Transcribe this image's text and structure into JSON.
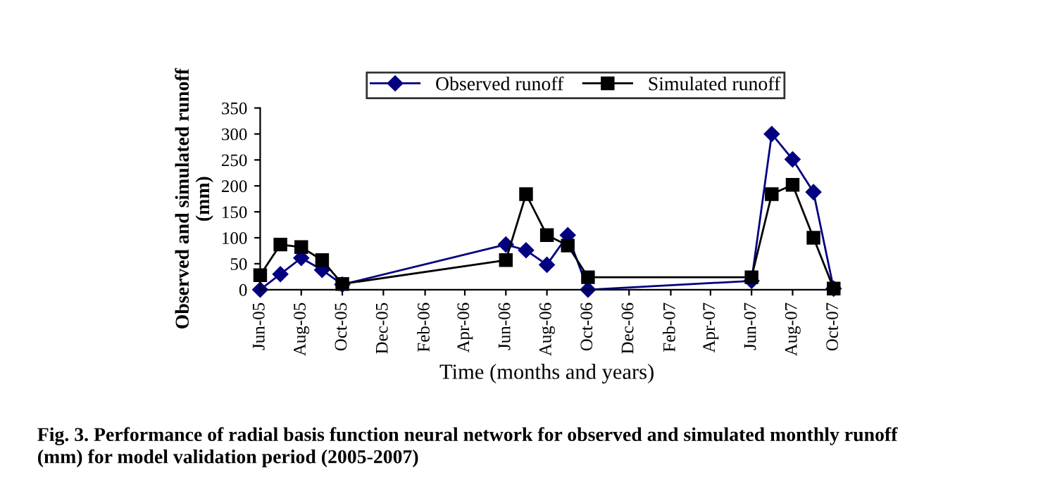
{
  "chart_data": {
    "type": "line",
    "xlabel": "Time (months and years)",
    "ylabel": "Observed and simulated runoff\n(mm)",
    "x": [
      "2005-06",
      "2005-07",
      "2005-08",
      "2005-09",
      "2005-10",
      "2006-06",
      "2006-07",
      "2006-08",
      "2006-09",
      "2006-10",
      "2007-06",
      "2007-07",
      "2007-08",
      "2007-09",
      "2007-10"
    ],
    "series": [
      {
        "name": "Observed runoff",
        "color": "#000080",
        "marker": "diamond",
        "values": [
          0,
          30,
          61,
          38,
          10,
          87,
          76,
          48,
          105,
          0,
          17,
          300,
          251,
          188,
          2
        ]
      },
      {
        "name": "Simulated runoff",
        "color": "#000000",
        "marker": "square",
        "values": [
          28,
          87,
          82,
          57,
          11,
          57,
          184,
          105,
          85,
          24,
          24,
          184,
          202,
          100,
          2
        ]
      }
    ],
    "xlim": [
      "2005-06",
      "2007-10"
    ],
    "xticks": [
      {
        "value": "2005-06",
        "label": "Jun-05"
      },
      {
        "value": "2005-08",
        "label": "Aug-05"
      },
      {
        "value": "2005-10",
        "label": "Oct-05"
      },
      {
        "value": "2005-12",
        "label": "Dec-05"
      },
      {
        "value": "2006-02",
        "label": "Feb-06"
      },
      {
        "value": "2006-04",
        "label": "Apr-06"
      },
      {
        "value": "2006-06",
        "label": "Jun-06"
      },
      {
        "value": "2006-08",
        "label": "Aug-06"
      },
      {
        "value": "2006-10",
        "label": "Oct-06"
      },
      {
        "value": "2006-12",
        "label": "Dec-06"
      },
      {
        "value": "2007-02",
        "label": "Feb-07"
      },
      {
        "value": "2007-04",
        "label": "Apr-07"
      },
      {
        "value": "2007-06",
        "label": "Jun-07"
      },
      {
        "value": "2007-08",
        "label": "Aug-07"
      },
      {
        "value": "2007-10",
        "label": "Oct-07"
      }
    ],
    "ylim": [
      0,
      350
    ],
    "yticks": [
      0,
      50,
      100,
      150,
      200,
      250,
      300,
      350
    ],
    "grid": false,
    "legend": "top",
    "line_style": "solid",
    "annotations": [
      "Fig. 3. Performance of radial basis function neural network for observed and simulated monthly runoff\n(mm) for model validation period (2005-2007)"
    ]
  }
}
